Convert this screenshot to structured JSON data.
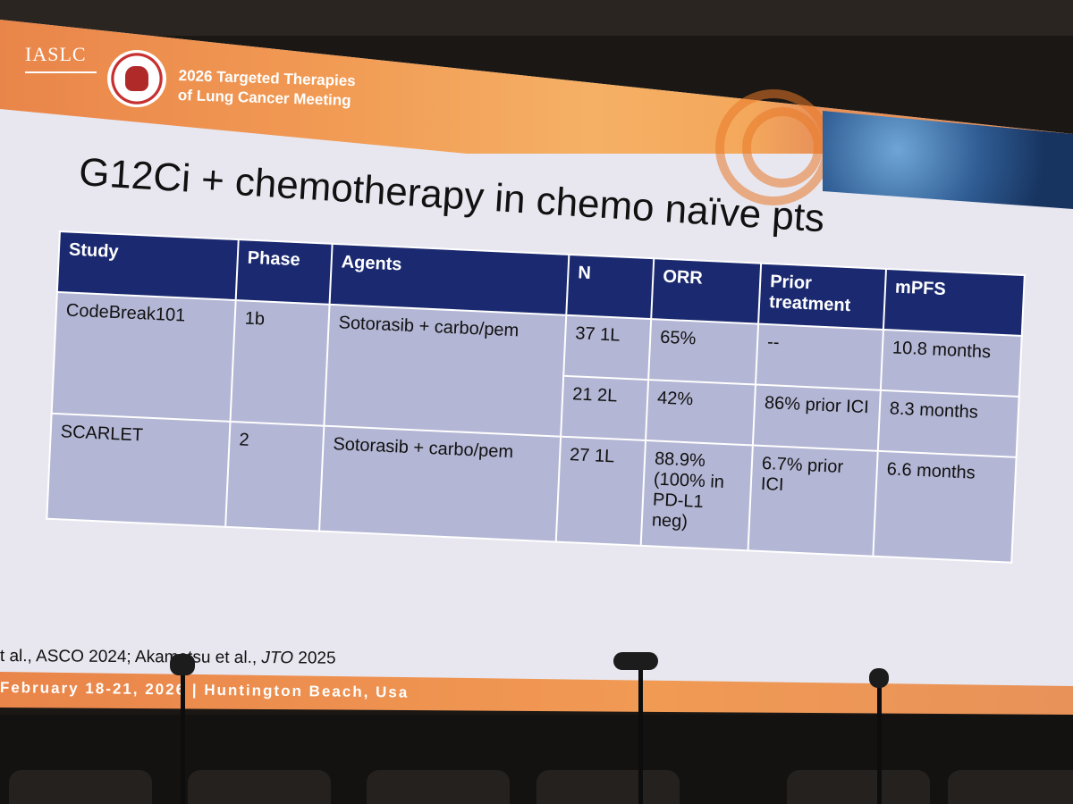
{
  "header": {
    "org": "IASLC",
    "meeting_line1": "2026 Targeted Therapies",
    "meeting_line2": "of Lung Cancer Meeting"
  },
  "slide": {
    "title": "G12Ci + chemotherapy in chemo naïve pts"
  },
  "table": {
    "headers": [
      "Study",
      "Phase",
      "Agents",
      "N",
      "ORR",
      "Prior treatment",
      "mPFS"
    ],
    "rows": [
      {
        "study": "CodeBreak101",
        "phase": "1b",
        "agents": "Sotorasib + carbo/pem",
        "n": "37 1L",
        "orr": "65%",
        "prior": "--",
        "mpfs": "10.8 months"
      },
      {
        "n": "21 2L",
        "orr": "42%",
        "prior": "86% prior ICI",
        "mpfs": "8.3 months"
      },
      {
        "study": "SCARLET",
        "phase": "2",
        "agents": "Sotorasib + carbo/pem",
        "n": "27 1L",
        "orr": "88.9% (100% in PD-L1 neg)",
        "prior": "6.7% prior ICI",
        "mpfs": "6.6 months"
      }
    ]
  },
  "references": {
    "part1": "t al., ASCO 2024; Akamatsu et al., ",
    "journal": "JTO",
    "part2": " 2025"
  },
  "footer": {
    "text": "February 18-21, 2026  |  Huntington Beach, Usa"
  },
  "colors": {
    "header_bg": "#1b2a70",
    "cell_bg": "#b3b6d4",
    "banner": "#f19a54"
  }
}
